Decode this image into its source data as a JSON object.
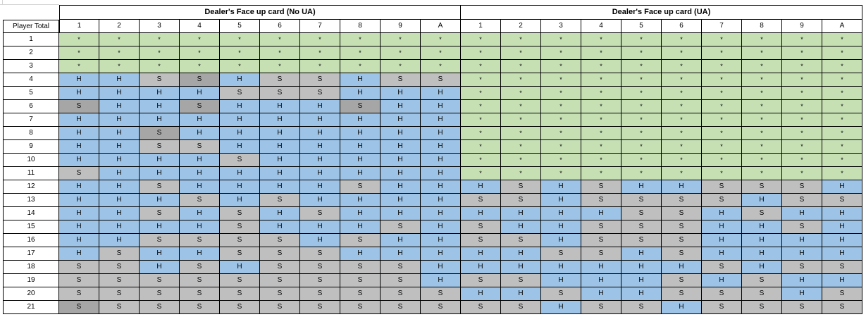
{
  "sheet": {
    "row_header_label": "Player Total",
    "sections": [
      {
        "title": "Dealer's Face up card (No UA)",
        "columns": [
          "1",
          "2",
          "3",
          "4",
          "5",
          "6",
          "7",
          "8",
          "9",
          "A"
        ],
        "rows": [
          [
            "*",
            "*",
            "*",
            "*",
            "*",
            "*",
            "*",
            "*",
            "*",
            "*"
          ],
          [
            "*",
            "*",
            "*",
            "*",
            "*",
            "*",
            "*",
            "*",
            "*",
            "*"
          ],
          [
            "*",
            "*",
            "*",
            "*",
            "*",
            "*",
            "*",
            "*",
            "*",
            "*"
          ],
          [
            "H",
            "H",
            "S",
            "S",
            "H",
            "S",
            "S",
            "H",
            "S",
            "S"
          ],
          [
            "H",
            "H",
            "H",
            "H",
            "S",
            "S",
            "S",
            "H",
            "H",
            "H"
          ],
          [
            "S",
            "H",
            "H",
            "S",
            "H",
            "H",
            "H",
            "S",
            "H",
            "H"
          ],
          [
            "H",
            "H",
            "H",
            "H",
            "H",
            "H",
            "H",
            "H",
            "H",
            "H"
          ],
          [
            "H",
            "H",
            "S",
            "H",
            "H",
            "H",
            "H",
            "H",
            "H",
            "H"
          ],
          [
            "H",
            "H",
            "S",
            "S",
            "H",
            "H",
            "H",
            "H",
            "H",
            "H"
          ],
          [
            "H",
            "H",
            "H",
            "H",
            "S",
            "H",
            "H",
            "H",
            "H",
            "H"
          ],
          [
            "S",
            "H",
            "H",
            "H",
            "H",
            "H",
            "H",
            "H",
            "H",
            "H"
          ],
          [
            "H",
            "H",
            "S",
            "H",
            "H",
            "H",
            "H",
            "S",
            "H",
            "H"
          ],
          [
            "H",
            "H",
            "H",
            "S",
            "H",
            "S",
            "H",
            "H",
            "H",
            "H"
          ],
          [
            "H",
            "H",
            "S",
            "H",
            "S",
            "H",
            "S",
            "H",
            "H",
            "H"
          ],
          [
            "H",
            "H",
            "H",
            "H",
            "S",
            "H",
            "H",
            "H",
            "S",
            "H"
          ],
          [
            "H",
            "H",
            "S",
            "S",
            "S",
            "S",
            "H",
            "S",
            "H",
            "H"
          ],
          [
            "H",
            "S",
            "H",
            "H",
            "S",
            "S",
            "S",
            "H",
            "H",
            "H"
          ],
          [
            "S",
            "S",
            "H",
            "S",
            "H",
            "S",
            "S",
            "S",
            "S",
            "H"
          ],
          [
            "S",
            "S",
            "S",
            "S",
            "S",
            "S",
            "S",
            "S",
            "S",
            "H"
          ],
          [
            "S",
            "S",
            "S",
            "S",
            "S",
            "S",
            "S",
            "S",
            "S",
            "S"
          ],
          [
            "S",
            "S",
            "S",
            "S",
            "S",
            "S",
            "S",
            "S",
            "S",
            "S"
          ]
        ]
      },
      {
        "title": "Dealer's Face up card (UA)",
        "columns": [
          "1",
          "2",
          "3",
          "4",
          "5",
          "6",
          "7",
          "8",
          "9",
          "A"
        ],
        "rows": [
          [
            "*",
            "*",
            "*",
            "*",
            "*",
            "*",
            "*",
            "*",
            "*",
            "*"
          ],
          [
            "*",
            "*",
            "*",
            "*",
            "*",
            "*",
            "*",
            "*",
            "*",
            "*"
          ],
          [
            "*",
            "*",
            "*",
            "*",
            "*",
            "*",
            "*",
            "*",
            "*",
            "*"
          ],
          [
            "*",
            "*",
            "*",
            "*",
            "*",
            "*",
            "*",
            "*",
            "*",
            "*"
          ],
          [
            "*",
            "*",
            "*",
            "*",
            "*",
            "*",
            "*",
            "*",
            "*",
            "*"
          ],
          [
            "*",
            "*",
            "*",
            "*",
            "*",
            "*",
            "*",
            "*",
            "*",
            "*"
          ],
          [
            "*",
            "*",
            "*",
            "*",
            "*",
            "*",
            "*",
            "*",
            "*",
            "*"
          ],
          [
            "*",
            "*",
            "*",
            "*",
            "*",
            "*",
            "*",
            "*",
            "*",
            "*"
          ],
          [
            "*",
            "*",
            "*",
            "*",
            "*",
            "*",
            "*",
            "*",
            "*",
            "*"
          ],
          [
            "*",
            "*",
            "*",
            "*",
            "*",
            "*",
            "*",
            "*",
            "*",
            "*"
          ],
          [
            "*",
            "*",
            "*",
            "*",
            "*",
            "*",
            "*",
            "*",
            "*",
            "*"
          ],
          [
            "H",
            "S",
            "H",
            "S",
            "H",
            "H",
            "S",
            "S",
            "S",
            "H"
          ],
          [
            "S",
            "S",
            "H",
            "S",
            "S",
            "S",
            "S",
            "H",
            "S",
            "S"
          ],
          [
            "H",
            "H",
            "H",
            "H",
            "S",
            "S",
            "H",
            "S",
            "H",
            "H"
          ],
          [
            "S",
            "H",
            "H",
            "S",
            "S",
            "S",
            "H",
            "H",
            "S",
            "H"
          ],
          [
            "S",
            "S",
            "H",
            "S",
            "S",
            "S",
            "H",
            "H",
            "H",
            "H"
          ],
          [
            "H",
            "H",
            "S",
            "S",
            "H",
            "S",
            "H",
            "H",
            "H",
            "H"
          ],
          [
            "H",
            "H",
            "H",
            "H",
            "H",
            "H",
            "S",
            "H",
            "S",
            "S"
          ],
          [
            "S",
            "S",
            "H",
            "H",
            "H",
            "S",
            "H",
            "S",
            "H",
            "H"
          ],
          [
            "H",
            "H",
            "S",
            "H",
            "H",
            "S",
            "S",
            "S",
            "H",
            "S"
          ],
          [
            "S",
            "S",
            "H",
            "S",
            "S",
            "H",
            "S",
            "S",
            "S",
            "S"
          ]
        ]
      }
    ],
    "player_totals": [
      "1",
      "2",
      "3",
      "4",
      "5",
      "6",
      "7",
      "8",
      "9",
      "10",
      "11",
      "12",
      "13",
      "14",
      "15",
      "16",
      "17",
      "18",
      "19",
      "20",
      "21"
    ]
  },
  "colors": {
    "hit": "#9dc3e6",
    "stand": "#bfbfbf",
    "stand_dark": "#a6a6a6",
    "na": "#c6e0b4",
    "header": "#ffffff"
  },
  "dark_stand_cells": [
    "0:5:0",
    "0:3:3",
    "0:5:3",
    "0:7:2",
    "0:5:7",
    "0:20:0"
  ]
}
